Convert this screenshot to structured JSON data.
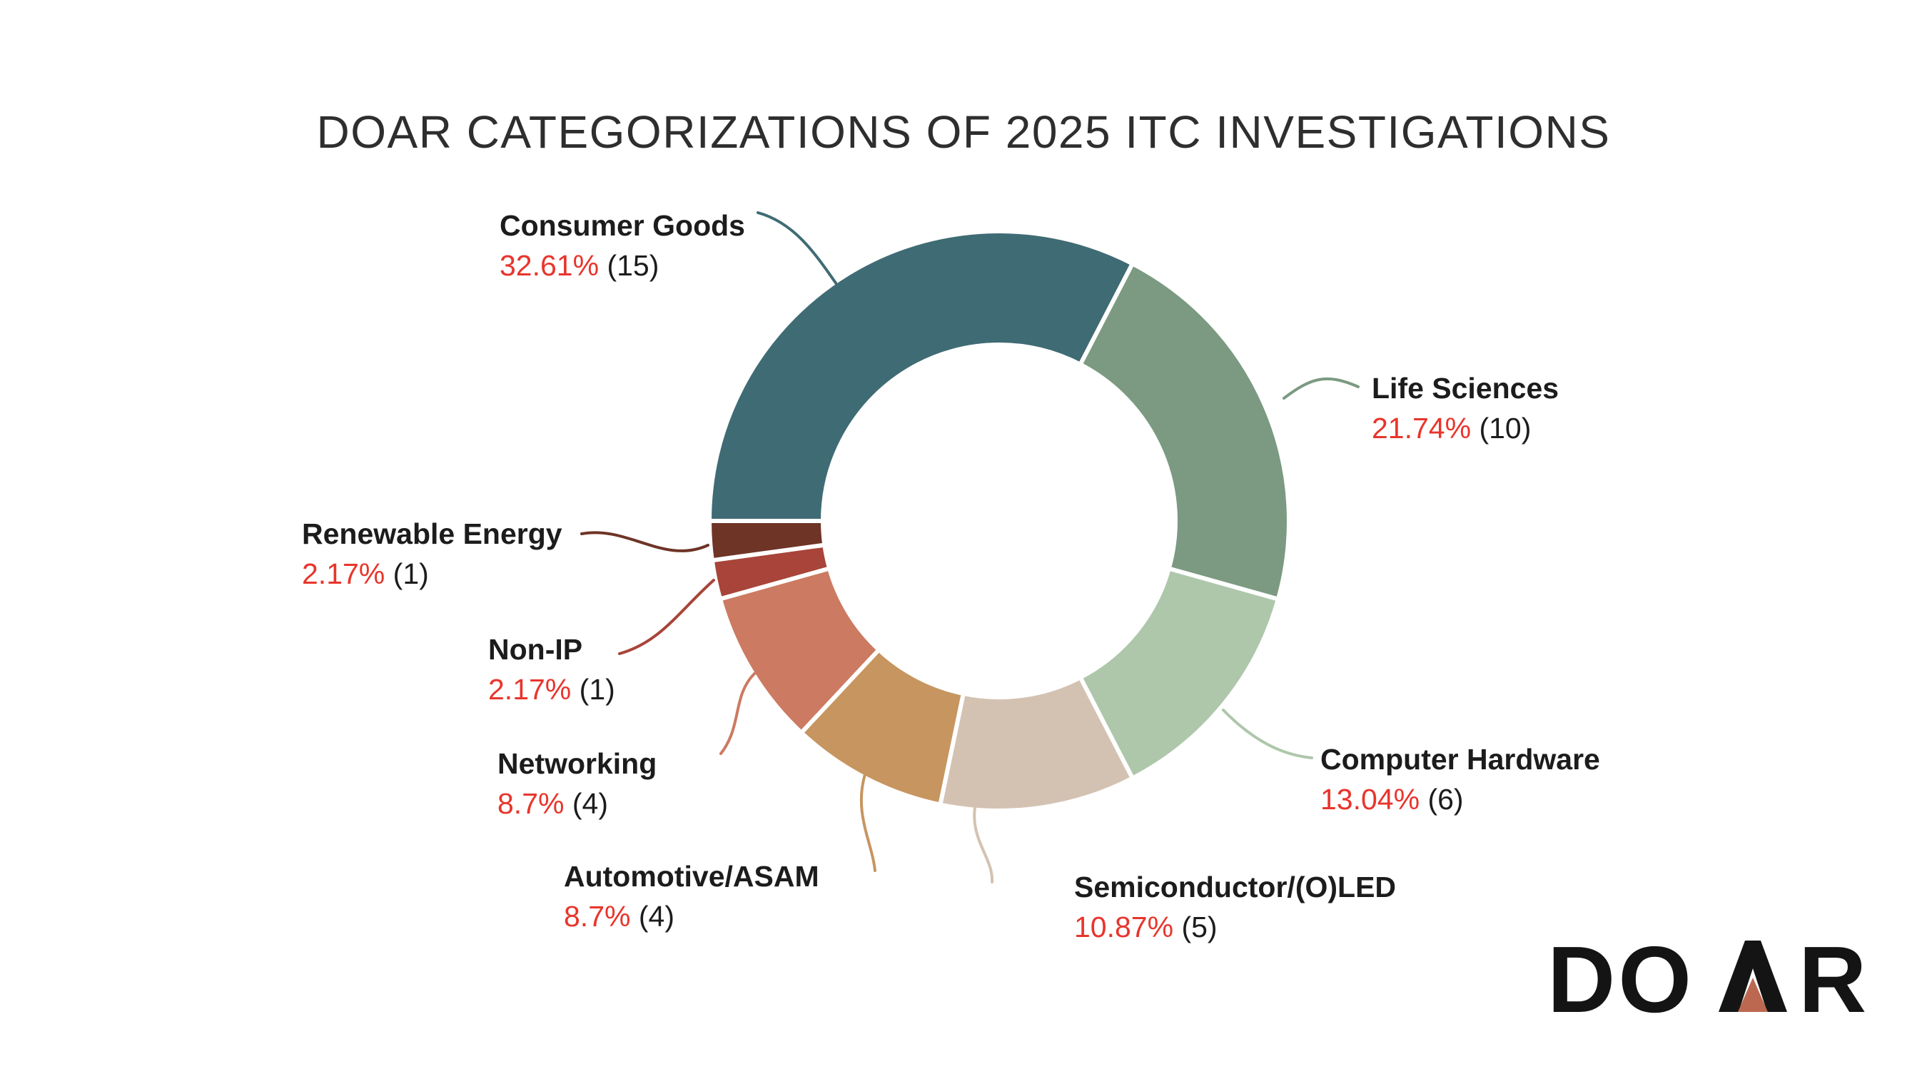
{
  "chart_data": {
    "type": "pie",
    "variant": "donut",
    "title": "DOAR CATEGORIZATIONS OF 2025 ITC INVESTIGATIONS",
    "start_angle_clockwise_from_top_deg": 270,
    "legend_position": "around-chart-with-leader-lines",
    "percent_text_color": "#e8352c",
    "label_text_color": "#1c1c1c",
    "segments": [
      {
        "label": "Consumer Goods",
        "percent_label": "32.61%",
        "value": 32.61,
        "count": 15,
        "count_label": "(15)",
        "color": "#3f6b74"
      },
      {
        "label": "Life Sciences",
        "percent_label": "21.74%",
        "value": 21.74,
        "count": 10,
        "count_label": "(10)",
        "color": "#7b9a81"
      },
      {
        "label": "Computer Hardware",
        "percent_label": "13.04%",
        "value": 13.04,
        "count": 6,
        "count_label": "(6)",
        "color": "#aec7ab"
      },
      {
        "label": "Semiconductor/(O)LED",
        "percent_label": "10.87%",
        "value": 10.87,
        "count": 5,
        "count_label": "(5)",
        "color": "#d3c2b2"
      },
      {
        "label": "Automotive/ASAM",
        "percent_label": "8.7%",
        "value": 8.7,
        "count": 4,
        "count_label": "(4)",
        "color": "#c79560"
      },
      {
        "label": "Networking",
        "percent_label": "8.7%",
        "value": 8.7,
        "count": 4,
        "count_label": "(4)",
        "color": "#cc7a62"
      },
      {
        "label": "Non-IP",
        "percent_label": "2.17%",
        "value": 2.17,
        "count": 1,
        "count_label": "(1)",
        "color": "#a84439"
      },
      {
        "label": "Renewable Energy",
        "percent_label": "2.17%",
        "value": 2.17,
        "count": 1,
        "count_label": "(1)",
        "color": "#6e3426"
      }
    ]
  },
  "logo": {
    "name": "DOAR",
    "text_left": "DO",
    "text_right": "R",
    "triangle_color": "#bc6850"
  }
}
